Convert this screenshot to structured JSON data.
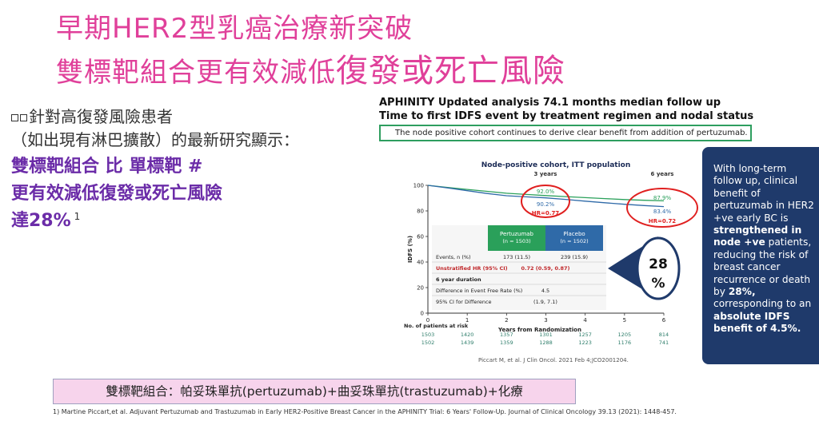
{
  "slide": {
    "title_line1": "早期HER2型乳癌治療新突破",
    "title_line2_part1": "雙標靶組合更有效減低",
    "title_line2_part2": "復發或死亡風險",
    "intro_line1": "針對高復發風險患者",
    "intro_line2": "（如出現有淋巴擴散）的最新研究顯示：",
    "lead_line1": "雙標靶組合 比 單標靶 #",
    "lead_line2": "更有效減低復發或死亡風險",
    "lead_line3": "達28%",
    "lead_ref": "1",
    "bottom_box": "雙標靶組合：帕妥珠單抗(pertuzumab)+曲妥珠單抗(trastuzumab)+化療",
    "footnote": "1) Martine Piccart,et al. Adjuvant Pertuzumab and Trastuzumab in Early HER2-Positive Breast Cancer in the APHINITY Trial: 6 Years' Follow-Up.  Journal of Clinical Oncology 39.13 (2021): 1448-457."
  },
  "figure": {
    "header_line1": "APHINITY Updated analysis 74.1 months median follow up",
    "header_line2": "Time to first IDFS event by treatment regimen and nodal status",
    "green_banner": "The node positive cohort continues to derive clear benefit from addition of pertuzumab.",
    "citation": "Piccart M, et al. J Clin Oncol. 2021 Feb 4;JCO2001204.",
    "table": {
      "pertuzumab_header": "Pertuzumab",
      "pertuzumab_n": "(n = 1503)",
      "placebo_header": "Placebo",
      "placebo_n": "(n = 1502)",
      "rows": [
        {
          "label": "Events, n (%)",
          "a": "173 (11.5)",
          "b": "239 (15.9)"
        },
        {
          "label": "Unstratified HR (95% CI)",
          "a": "0.72 (0.59, 0.87)",
          "b": ""
        },
        {
          "label": "6 year duration",
          "a": "",
          "b": ""
        },
        {
          "label": "Difference in Event Free Rate (%)",
          "a": "4.5",
          "b": ""
        },
        {
          "label": "95% CI for Difference",
          "a": "(1.9, 7.1)",
          "b": ""
        }
      ]
    },
    "risk_table": {
      "label": "No. of patients at risk",
      "row1": [
        "1503",
        "1420",
        "1357",
        "1301",
        "1257",
        "1205",
        "814"
      ],
      "row2": [
        "1502",
        "1439",
        "1359",
        "1288",
        "1223",
        "1176",
        "741"
      ]
    },
    "badge_top": "28",
    "badge_bottom": "%",
    "colors": {
      "pertuzumab": "#2aa05a",
      "placebo": "#2f6aa8",
      "highlight": "#e02020",
      "navy": "#1f3a6b",
      "risk_text": "#2d7d6a"
    }
  },
  "sidebar": {
    "text_1": "With long-term follow up, clinical benefit of pertuzumab in HER2 +ve early BC is ",
    "bold_1": "strengthened in node +ve",
    "text_2": " patients, reducing the risk of breast cancer recurrence or death by ",
    "bold_2": "28%,",
    "text_3": " corresponding to an ",
    "bold_3": "absolute IDFS benefit of 4.5%."
  },
  "chart_data": {
    "type": "line",
    "title": "Node-positive cohort, ITT population",
    "xlabel": "Years from Randomization",
    "ylabel": "IDFS (%)",
    "xlim": [
      0,
      6
    ],
    "ylim": [
      0,
      100
    ],
    "x_ticks": [
      0,
      1,
      2,
      3,
      4,
      5,
      6
    ],
    "y_ticks": [
      0,
      20,
      40,
      60,
      80,
      100
    ],
    "top_markers": [
      "3 years",
      "6 years"
    ],
    "series": [
      {
        "name": "Pertuzumab",
        "color": "#2aa05a",
        "x": [
          0,
          0.5,
          1,
          1.5,
          2,
          2.5,
          3,
          3.5,
          4,
          4.5,
          5,
          5.5,
          6
        ],
        "y": [
          100,
          98.4,
          96.8,
          95.3,
          93.8,
          92.9,
          92.0,
          91.2,
          90.4,
          89.6,
          88.9,
          88.3,
          87.9
        ]
      },
      {
        "name": "Placebo",
        "color": "#2f6aa8",
        "x": [
          0,
          0.5,
          1,
          1.5,
          2,
          2.5,
          3,
          3.5,
          4,
          4.5,
          5,
          5.5,
          6
        ],
        "y": [
          100,
          98.0,
          95.8,
          93.6,
          91.9,
          91.0,
          90.2,
          89.0,
          87.6,
          86.4,
          85.2,
          84.2,
          83.4
        ]
      }
    ],
    "annotations": [
      {
        "x": 3,
        "values": [
          "92.0%",
          "90.2%"
        ],
        "hr": "HR=0.77"
      },
      {
        "x": 6,
        "values": [
          "87.9%",
          "83.4%"
        ],
        "hr": "HR=0.72"
      }
    ]
  }
}
